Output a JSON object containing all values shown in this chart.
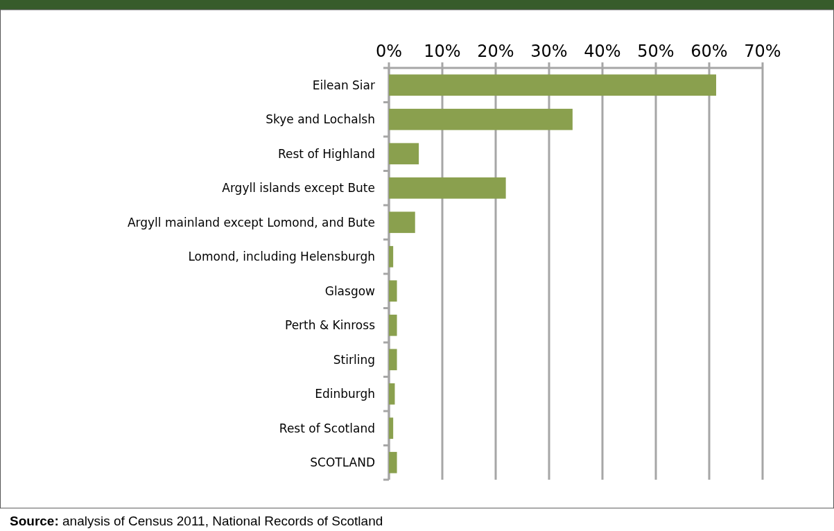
{
  "chart_data": {
    "type": "bar",
    "orientation": "horizontal",
    "categories": [
      "Eilean Siar",
      "Skye and Lochalsh",
      "Rest of Highland",
      "Argyll islands except Bute",
      "Argyll mainland except Lomond, and Bute",
      "Lomond, including Helensburgh",
      "Glasgow",
      "Perth & Kinross",
      "Stirling",
      "Edinburgh",
      "Rest of Scotland",
      "SCOTLAND"
    ],
    "values": [
      61.3,
      34.4,
      5.6,
      21.9,
      4.9,
      0.8,
      1.5,
      1.5,
      1.5,
      1.1,
      0.8,
      1.5
    ],
    "color": "#8aa04e",
    "xlim": [
      0,
      70
    ],
    "xticks": [
      {
        "value": 0,
        "label": "0%"
      },
      {
        "value": 10,
        "label": "10%"
      },
      {
        "value": 20,
        "label": "20%"
      },
      {
        "value": 30,
        "label": "30%"
      },
      {
        "value": 40,
        "label": "40%"
      },
      {
        "value": 50,
        "label": "50%"
      },
      {
        "value": 60,
        "label": "60%"
      },
      {
        "value": 70,
        "label": "70%"
      }
    ],
    "grid": "x",
    "annotations": [
      "Source: analysis of Census 2011, National Records of Scotland"
    ]
  }
}
